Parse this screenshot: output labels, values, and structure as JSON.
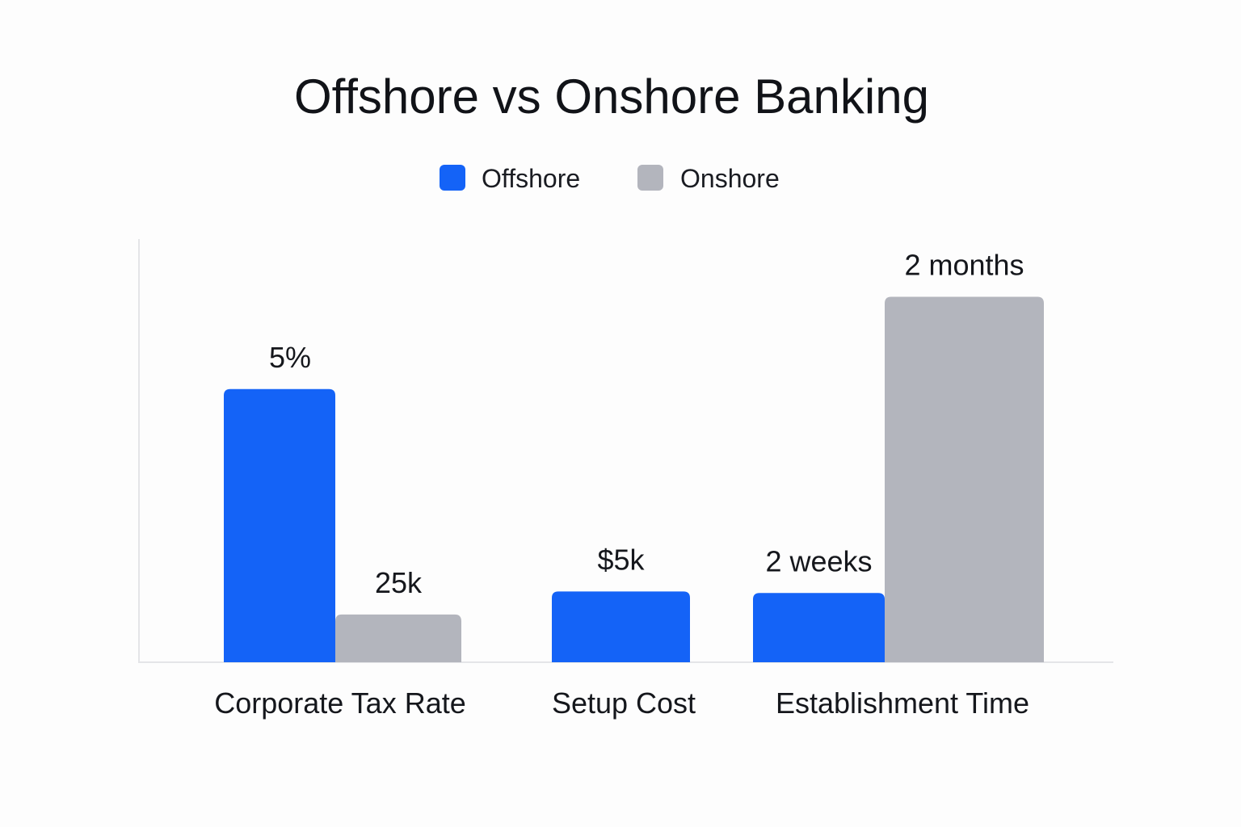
{
  "chart_data": {
    "type": "bar",
    "title": "Offshore vs Onshore Banking",
    "legend": {
      "position": "top-center",
      "entries": [
        "Offshore",
        "Onshore"
      ]
    },
    "colors": {
      "offshore": "#1463f7",
      "onshore": "#b3b5bd"
    },
    "categories": [
      "Corporate Tax Rate",
      "Setup Cost",
      "Establishment Time"
    ],
    "series": [
      {
        "name": "Offshore",
        "values": [
          3.55,
          0.92,
          0.9
        ],
        "labels": [
          "5%",
          "$5k",
          "2 weeks"
        ]
      },
      {
        "name": "Onshore",
        "values": [
          0.62,
          null,
          4.75
        ],
        "labels": [
          "25k",
          "",
          "2 months"
        ]
      }
    ],
    "ylim": [
      0,
      5.5
    ],
    "xlabel": "",
    "ylabel": "",
    "grid": false,
    "y_axis_visible": false
  }
}
